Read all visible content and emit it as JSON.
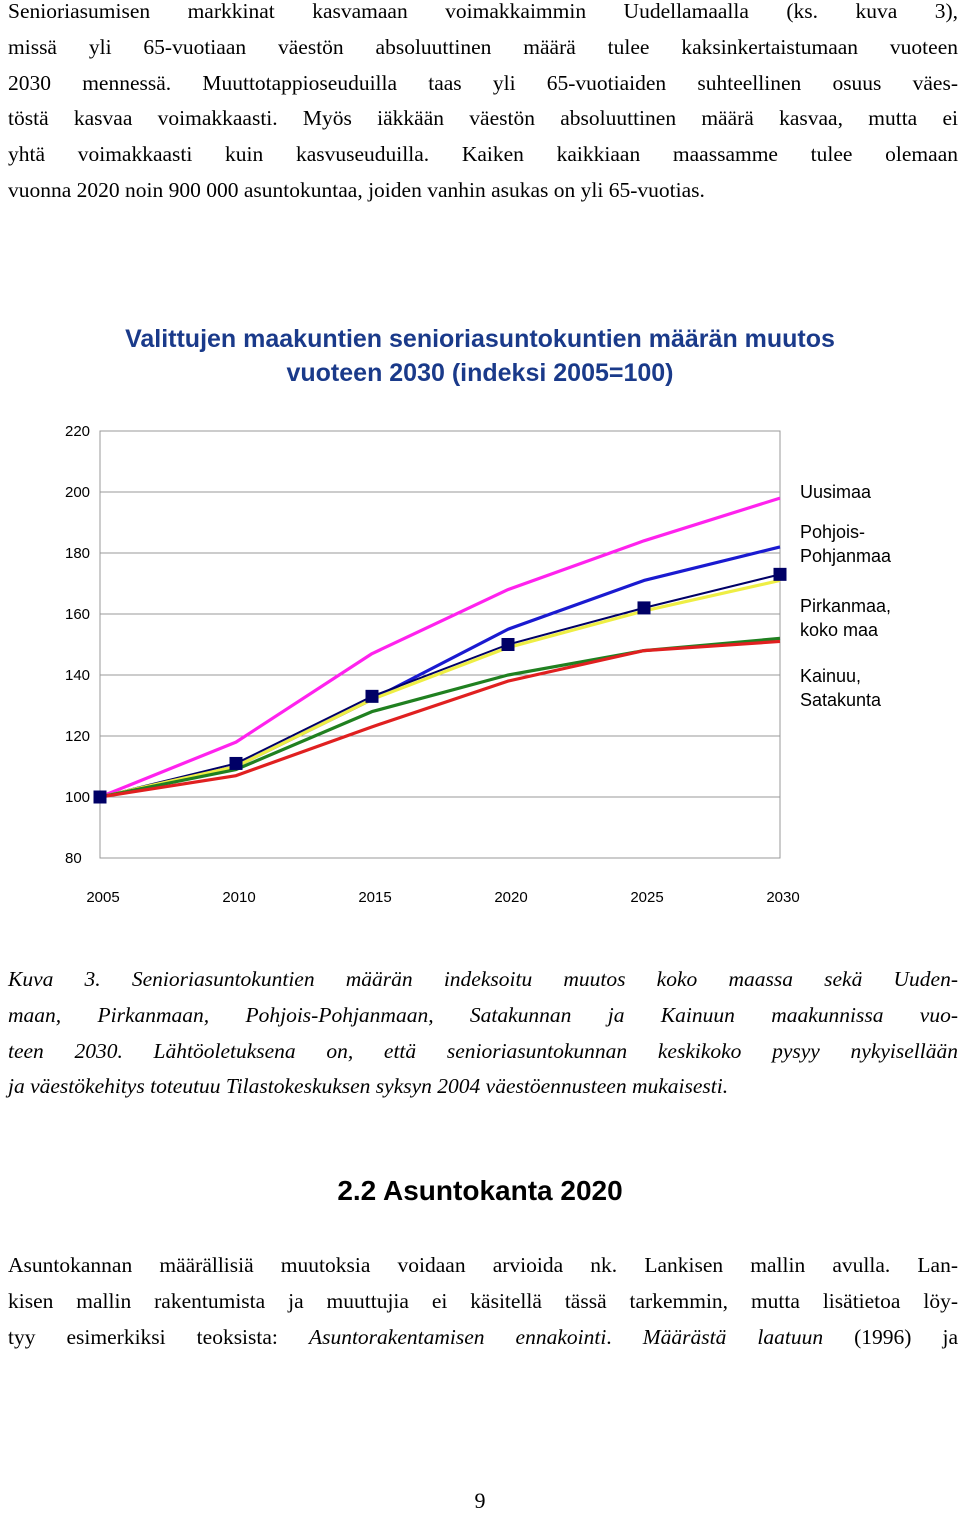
{
  "paragraph1": {
    "lines": [
      "Senioriasumisen markkinat kasvamaan voimakkaimmin Uudellamaalla (ks. kuva 3),",
      "missä yli 65-vuotiaan väestön absoluuttinen määrä tulee kaksinkertaistumaan vuoteen",
      "2030 mennessä. Muuttotappioseuduilla taas yli 65-vuotiaiden suhteellinen osuus väes-",
      "töstä kasvaa voimakkaasti. Myös iäkkään väestön absoluuttinen määrä kasvaa, mutta ei",
      "yhtä voimakkaasti kuin kasvuseuduilla. Kaiken kaikkiaan maassamme tulee olemaan",
      "vuonna 2020 noin 900 000 asuntokuntaa, joiden vanhin asukas on yli 65-vuotias."
    ]
  },
  "chart_data": {
    "type": "line",
    "title": [
      "Valittujen maakuntien senioriasuntokuntien määrän muutos",
      "vuoteen 2030 (indeksi 2005=100)"
    ],
    "x": [
      2005,
      2010,
      2015,
      2020,
      2025,
      2030
    ],
    "x_tick_labels": [
      "2005",
      "2010",
      "2015",
      "2020",
      "2025",
      "2030"
    ],
    "y_tick_labels": [
      "220",
      "200",
      "180",
      "160",
      "140",
      "120",
      "100",
      "80"
    ],
    "y_ticks": [
      220,
      200,
      180,
      160,
      140,
      120,
      100,
      80
    ],
    "ylim": [
      80,
      220
    ],
    "xlim": [
      2005,
      2030
    ],
    "grid": "horizontal",
    "legend_labels": [
      "Uusimaa",
      "Pohjois-\nPohjanmaa",
      "Pirkanmaa,\nkoko maa",
      "Kainuu,\nSatakunta"
    ],
    "series": [
      {
        "key": "uusimaa",
        "color": "#ff22ee",
        "values": [
          100,
          118,
          147,
          168,
          184,
          198
        ]
      },
      {
        "key": "pohjois_pohjanmaa",
        "color": "#1a1ad0",
        "values": [
          100,
          110,
          132,
          155,
          171,
          182
        ]
      },
      {
        "key": "koko_maa",
        "color": "#000066",
        "marker": "square",
        "values": [
          100,
          111,
          133,
          150,
          162,
          173
        ]
      },
      {
        "key": "pirkanmaa",
        "color": "#eeee44",
        "values": [
          100,
          110,
          132,
          149,
          161,
          171
        ]
      },
      {
        "key": "kainuu",
        "color": "#208020",
        "values": [
          100,
          109,
          128,
          140,
          148,
          152
        ]
      },
      {
        "key": "satakunta",
        "color": "#e02020",
        "values": [
          100,
          107,
          123,
          138,
          148,
          151
        ]
      }
    ]
  },
  "caption": {
    "lines": [
      "Kuva 3. Senioriasuntokuntien määrän indeksoitu muutos koko maassa sekä Uuden-",
      "maan, Pirkanmaan, Pohjois-Pohjanmaan, Satakunnan ja Kainuun maakunnissa vuo-",
      "teen 2030. Lähtöoletuksena on, että senioriasuntokunnan keskikoko pysyy nykyisellään",
      "ja väestökehitys toteutuu Tilastokeskuksen syksyn 2004 väestöennusteen mukaisesti."
    ]
  },
  "section": {
    "number": "2.2",
    "title": "Asuntokanta 2020"
  },
  "paragraph2": {
    "line1": "Asuntokannan määrällisiä muutoksia voidaan arvioida nk. Lankisen mallin avulla. Lan-",
    "line2": "kisen mallin rakentumista ja muuttujia ei käsitellä tässä tarkemmin, mutta lisätietoa löy-",
    "line3_before": "tyy esimerkiksi teoksista: ",
    "ref1": "Asuntorakentamisen ennakointi",
    "line3_mid": ". ",
    "ref2": "Määrästä laatuun",
    "line3_after": " (1996) ja"
  },
  "page_number": "9"
}
